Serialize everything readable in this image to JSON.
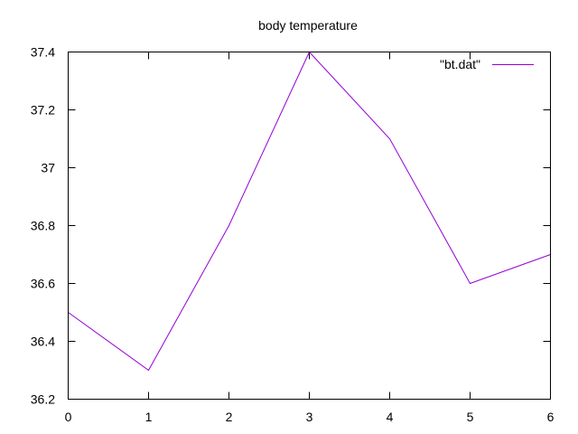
{
  "chart_data": {
    "type": "line",
    "title": "body temperature",
    "xlabel": "",
    "ylabel": "",
    "xlim": [
      0,
      6
    ],
    "ylim": [
      36.2,
      37.4
    ],
    "xticks": [
      "0",
      "1",
      "2",
      "3",
      "4",
      "5",
      "6"
    ],
    "yticks": [
      "36.2",
      "36.4",
      "36.6",
      "36.8",
      "37",
      "37.2",
      "37.4"
    ],
    "grid": false,
    "legend_position": "top-right",
    "series": [
      {
        "name": "\"bt.dat\"",
        "color": "#9400d3",
        "x": [
          0,
          1,
          2,
          3,
          4,
          5,
          6
        ],
        "y": [
          36.5,
          36.3,
          36.8,
          37.4,
          37.1,
          36.6,
          36.7
        ]
      }
    ]
  }
}
